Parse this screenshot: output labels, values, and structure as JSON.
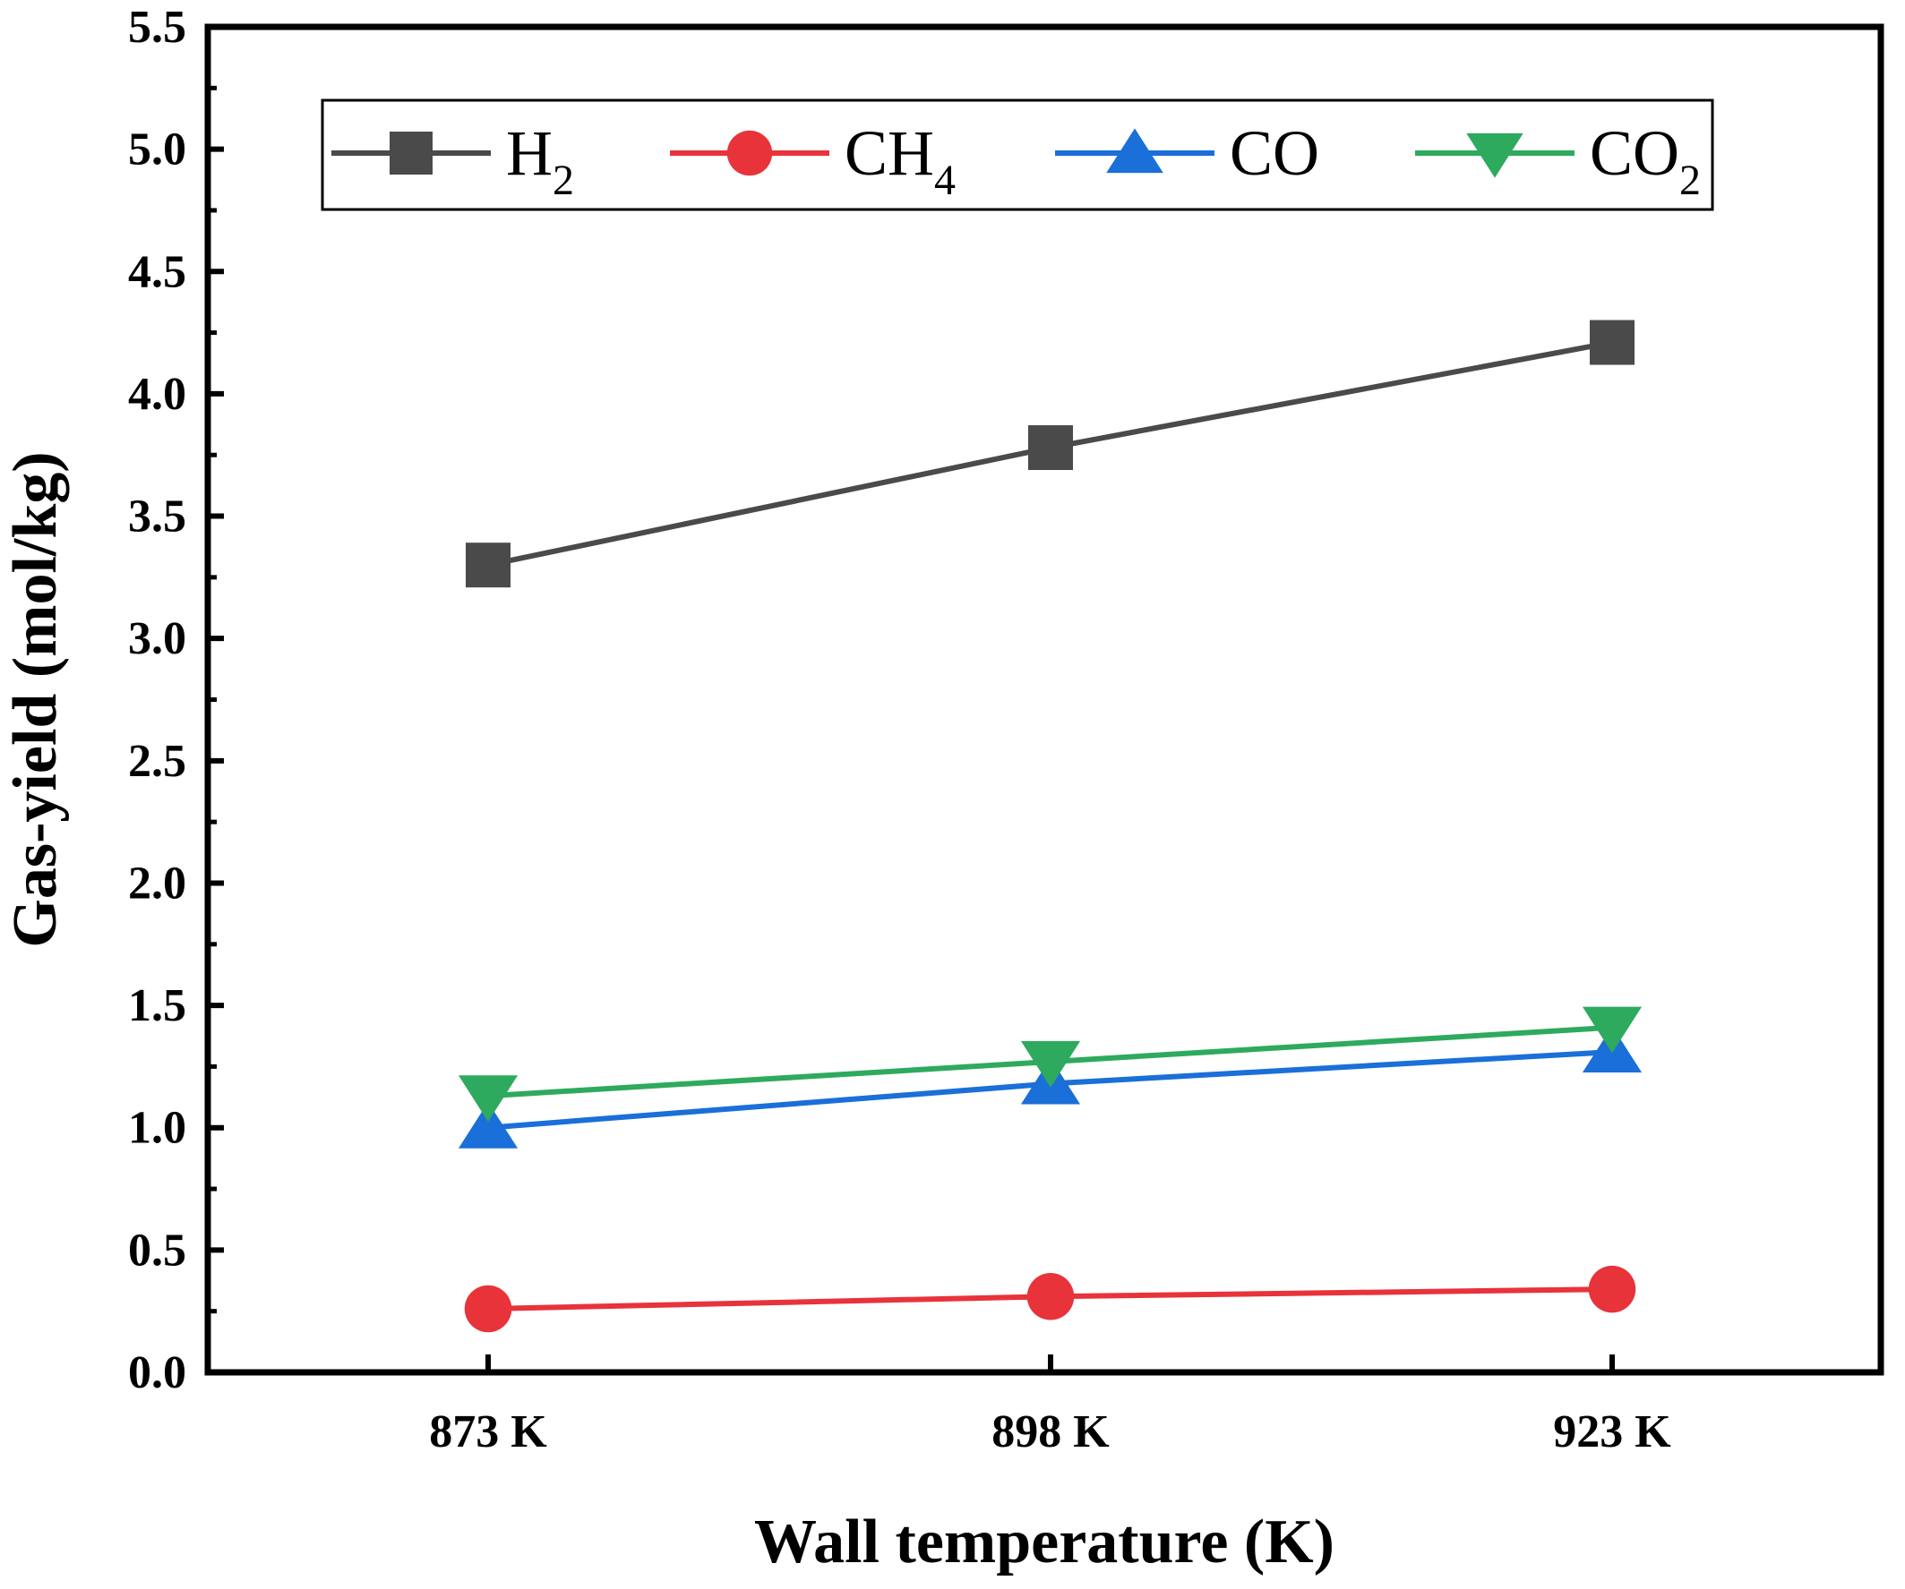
{
  "chart_data": {
    "type": "line",
    "title": "",
    "xlabel": "Wall temperature (K)",
    "ylabel": "Gas-yield (mol/kg)",
    "categories": [
      "873 K",
      "898 K",
      "923 K"
    ],
    "ylim": [
      0.0,
      5.5
    ],
    "yticks": [
      "0.0",
      "0.5",
      "1.0",
      "1.5",
      "2.0",
      "2.5",
      "3.0",
      "3.5",
      "4.0",
      "4.5",
      "5.0",
      "5.5"
    ],
    "legend_position": "top",
    "grid": false,
    "series": [
      {
        "name": "H2",
        "label_base": "H",
        "label_sub": "2",
        "values": [
          3.3,
          3.78,
          4.21
        ],
        "color": "#4a4a4a",
        "marker": "square"
      },
      {
        "name": "CH4",
        "label_base": "CH",
        "label_sub": "4",
        "values": [
          0.26,
          0.31,
          0.34
        ],
        "color": "#e8333a",
        "marker": "circle"
      },
      {
        "name": "CO",
        "label_base": "CO",
        "label_sub": "",
        "values": [
          1.0,
          1.18,
          1.31
        ],
        "color": "#1a6fd8",
        "marker": "triangle-up"
      },
      {
        "name": "CO2",
        "label_base": "CO",
        "label_sub": "2",
        "values": [
          1.13,
          1.27,
          1.41
        ],
        "color": "#2eaa5e",
        "marker": "triangle-down"
      }
    ]
  }
}
